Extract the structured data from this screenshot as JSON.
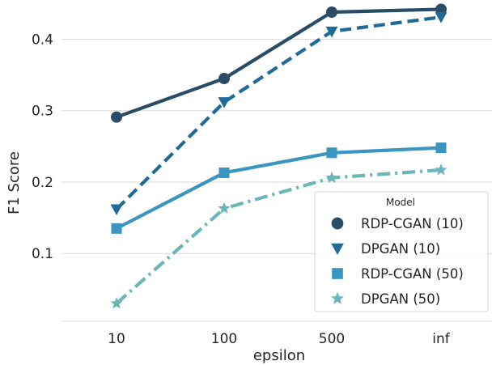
{
  "chart_data": {
    "type": "line",
    "categories": [
      "10",
      "100",
      "500",
      "inf"
    ],
    "xlabel": "epsilon",
    "ylabel": "F1 Score",
    "ylim": [
      0.005,
      0.455
    ],
    "yticks": [
      0.1,
      0.2,
      0.3,
      0.4
    ],
    "ytick_labels": [
      "0.1",
      "0.2",
      "0.3",
      "0.4"
    ],
    "grid": "horizontal",
    "legend": {
      "title": "Model",
      "placement": "lower-right"
    },
    "series": [
      {
        "name": "RDP-CGAN (10)",
        "values": [
          0.291,
          0.345,
          0.438,
          0.442
        ],
        "color": "#2a4d67",
        "marker": "circle",
        "linestyle": "solid"
      },
      {
        "name": "DPGAN (10)",
        "values": [
          0.162,
          0.312,
          0.411,
          0.431
        ],
        "color": "#216a98",
        "marker": "triangle-down",
        "linestyle": "dashed"
      },
      {
        "name": "RDP-CGAN (50)",
        "values": [
          0.135,
          0.213,
          0.241,
          0.248
        ],
        "color": "#3a95c0",
        "marker": "square",
        "linestyle": "solid"
      },
      {
        "name": "DPGAN (50)",
        "values": [
          0.03,
          0.163,
          0.206,
          0.217
        ],
        "color": "#6ab7b8",
        "marker": "star",
        "linestyle": "dashdot"
      }
    ]
  }
}
